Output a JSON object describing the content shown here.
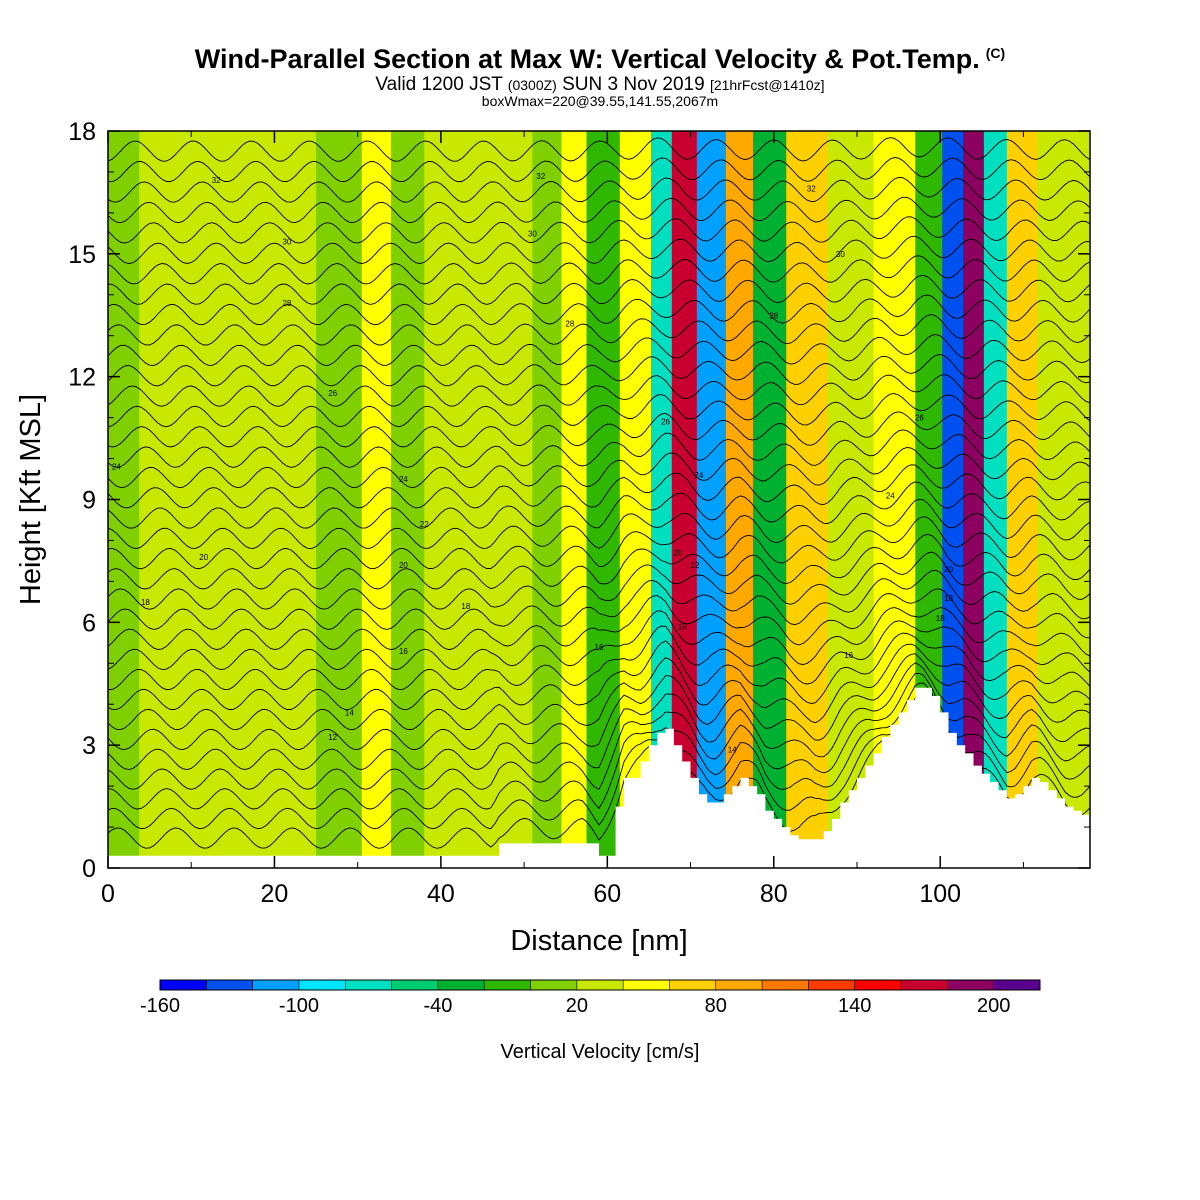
{
  "title": {
    "main": "Wind-Parallel Section at Max W: Vertical Velocity & Pot.Temp.",
    "copyright": "(C)",
    "valid_prefix": "Valid 1200 JST",
    "utc": "(0300Z)",
    "date": "SUN 3 Nov 2019",
    "forecast": "[21hrFcst@1410z]",
    "box": "boxWmax=220@39.55,141.55,2067m"
  },
  "chart_data": {
    "type": "heatmap",
    "xlabel": "Distance [nm]",
    "ylabel": "Height [Kft MSL]",
    "xlim": [
      0,
      118
    ],
    "ylim": [
      0,
      18
    ],
    "x_ticks": [
      "0",
      "20",
      "40",
      "60",
      "80",
      "100"
    ],
    "x_tick_values": [
      0,
      20,
      40,
      60,
      80,
      100
    ],
    "y_ticks": [
      "0",
      "3",
      "6",
      "9",
      "12",
      "15",
      "18"
    ],
    "y_tick_values": [
      0,
      3,
      6,
      9,
      12,
      15,
      18
    ],
    "grid": false,
    "colorbar": {
      "label": "Vertical Velocity [cm/s]",
      "tick_labels": [
        "-160",
        "-100",
        "-40",
        "20",
        "80",
        "140",
        "200"
      ],
      "tick_values": [
        -160,
        -100,
        -40,
        20,
        80,
        140,
        200
      ],
      "colors": [
        "#0000ff",
        "#0050f0",
        "#00a0ff",
        "#00e6ff",
        "#00e0c0",
        "#00cc70",
        "#00b030",
        "#30b800",
        "#80d000",
        "#c8e800",
        "#ffff00",
        "#ffd000",
        "#ffa800",
        "#ff7800",
        "#ff3c00",
        "#ff0000",
        "#c80030",
        "#8c0060",
        "#5a0090"
      ]
    },
    "background_color": "#8ed600",
    "velocity_bands": [
      {
        "x": 0.5,
        "value": 10
      },
      {
        "x": 7,
        "value": 20
      },
      {
        "x": 21,
        "value": 20
      },
      {
        "x": 29,
        "value": 10
      },
      {
        "x": 32,
        "value": 40
      },
      {
        "x": 36,
        "value": 10
      },
      {
        "x": 40,
        "value": 20
      },
      {
        "x": 49,
        "value": 30
      },
      {
        "x": 53,
        "value": 10
      },
      {
        "x": 56,
        "value": 50
      },
      {
        "x": 59,
        "value": -20
      },
      {
        "x": 64,
        "value": 40
      },
      {
        "x": 66.5,
        "value": -80
      },
      {
        "x": 69,
        "value": 160
      },
      {
        "x": 72.5,
        "value": -120
      },
      {
        "x": 76,
        "value": 80
      },
      {
        "x": 79,
        "value": -40
      },
      {
        "x": 84,
        "value": 60
      },
      {
        "x": 89,
        "value": 20
      },
      {
        "x": 95,
        "value": 50
      },
      {
        "x": 99,
        "value": -20
      },
      {
        "x": 101.5,
        "value": -140
      },
      {
        "x": 104,
        "value": 180
      },
      {
        "x": 106.5,
        "value": -80
      },
      {
        "x": 109.5,
        "value": 70
      },
      {
        "x": 114,
        "value": 20
      }
    ],
    "terrain": {
      "x": [
        0,
        46,
        47,
        57,
        59,
        61,
        62,
        64,
        65,
        66,
        67,
        68,
        69,
        70,
        71,
        72,
        73,
        74,
        75,
        76,
        77,
        78,
        79,
        80,
        81,
        82,
        83,
        84,
        85,
        86,
        87,
        88,
        89,
        90,
        91,
        92,
        93,
        94,
        95,
        96,
        97,
        98,
        99,
        100,
        101,
        102,
        103,
        104,
        105,
        106,
        107,
        108,
        109,
        110,
        111,
        112,
        113,
        114,
        115,
        116,
        117,
        118
      ],
      "height": [
        0.3,
        0.3,
        0.6,
        0.6,
        0.3,
        1.5,
        2.2,
        2.6,
        3.0,
        3.3,
        3.4,
        3.0,
        2.6,
        2.2,
        1.8,
        1.6,
        1.6,
        1.8,
        2.0,
        2.2,
        2.0,
        1.8,
        1.4,
        1.2,
        1.0,
        0.8,
        0.7,
        0.7,
        0.7,
        0.9,
        1.2,
        1.6,
        1.9,
        2.2,
        2.5,
        2.8,
        3.2,
        3.5,
        3.8,
        4.1,
        4.4,
        4.4,
        4.2,
        3.8,
        3.3,
        3.0,
        2.8,
        2.5,
        2.3,
        2.1,
        1.9,
        1.7,
        1.8,
        2.0,
        2.2,
        2.1,
        1.9,
        1.7,
        1.5,
        1.4,
        1.3,
        1.3
      ]
    },
    "theta_contours": [
      {
        "y": 0.5
      },
      {
        "y": 1.0
      },
      {
        "y": 1.5
      },
      {
        "y": 2.0
      },
      {
        "y": 2.5
      },
      {
        "y": 3.0
      },
      {
        "y": 3.5
      },
      {
        "y": 4.0
      },
      {
        "y": 4.5
      },
      {
        "y": 5.0
      },
      {
        "y": 5.5
      },
      {
        "y": 6.0
      },
      {
        "y": 6.5
      },
      {
        "y": 7.0
      },
      {
        "y": 7.5
      },
      {
        "y": 8.0
      },
      {
        "y": 8.5
      },
      {
        "y": 9.0
      },
      {
        "y": 9.5
      },
      {
        "y": 10.0
      },
      {
        "y": 10.5
      },
      {
        "y": 11.0
      },
      {
        "y": 11.5
      },
      {
        "y": 12.0
      },
      {
        "y": 12.5
      },
      {
        "y": 13.0
      },
      {
        "y": 13.5
      },
      {
        "y": 14.0
      },
      {
        "y": 14.5
      },
      {
        "y": 15.0
      },
      {
        "y": 15.5
      },
      {
        "y": 16.0
      },
      {
        "y": 16.5
      },
      {
        "y": 17.0
      },
      {
        "y": 17.5
      }
    ],
    "contour_labels": [
      {
        "x": 13,
        "y": 16.8,
        "text": "32"
      },
      {
        "x": 52,
        "y": 16.9,
        "text": "32"
      },
      {
        "x": 84.5,
        "y": 16.6,
        "text": "32"
      },
      {
        "x": 21.5,
        "y": 15.3,
        "text": "30"
      },
      {
        "x": 51,
        "y": 15.5,
        "text": "30"
      },
      {
        "x": 88,
        "y": 15.0,
        "text": "30"
      },
      {
        "x": 21.5,
        "y": 13.8,
        "text": "28"
      },
      {
        "x": 55.5,
        "y": 13.3,
        "text": "28"
      },
      {
        "x": 80,
        "y": 13.5,
        "text": "28"
      },
      {
        "x": 27,
        "y": 11.6,
        "text": "26"
      },
      {
        "x": 67,
        "y": 10.9,
        "text": "26"
      },
      {
        "x": 97.5,
        "y": 11.0,
        "text": "26"
      },
      {
        "x": 1,
        "y": 9.8,
        "text": "24"
      },
      {
        "x": 35.5,
        "y": 9.5,
        "text": "24"
      },
      {
        "x": 71,
        "y": 9.6,
        "text": "24"
      },
      {
        "x": 94,
        "y": 9.1,
        "text": "24"
      },
      {
        "x": 38,
        "y": 8.4,
        "text": "22"
      },
      {
        "x": 11.5,
        "y": 7.6,
        "text": "20"
      },
      {
        "x": 35.5,
        "y": 7.4,
        "text": "20"
      },
      {
        "x": 68.5,
        "y": 7.7,
        "text": "20"
      },
      {
        "x": 70.5,
        "y": 7.4,
        "text": "22"
      },
      {
        "x": 101,
        "y": 7.3,
        "text": "20"
      },
      {
        "x": 4.5,
        "y": 6.5,
        "text": "18"
      },
      {
        "x": 43,
        "y": 6.4,
        "text": "18"
      },
      {
        "x": 69,
        "y": 5.9,
        "text": "18"
      },
      {
        "x": 101,
        "y": 6.6,
        "text": "18"
      },
      {
        "x": 100,
        "y": 6.1,
        "text": "18"
      },
      {
        "x": 35.5,
        "y": 5.3,
        "text": "16"
      },
      {
        "x": 59,
        "y": 5.4,
        "text": "16"
      },
      {
        "x": 89,
        "y": 5.2,
        "text": "16"
      },
      {
        "x": 29,
        "y": 3.8,
        "text": "14"
      },
      {
        "x": 75,
        "y": 2.9,
        "text": "14"
      },
      {
        "x": 27,
        "y": 3.2,
        "text": "12"
      }
    ]
  }
}
